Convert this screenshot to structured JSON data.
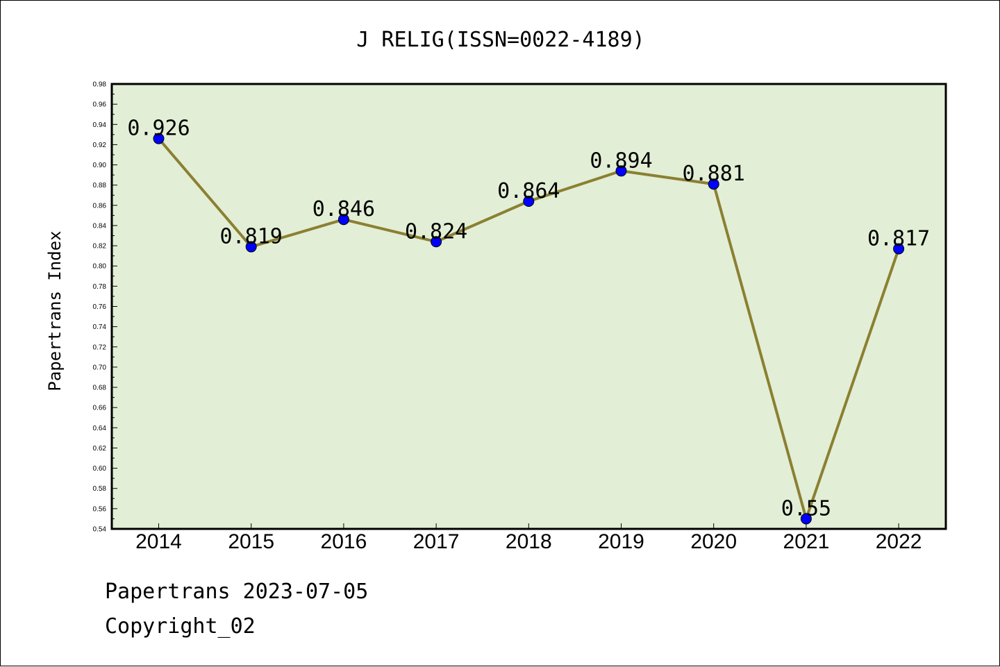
{
  "chart_data": {
    "type": "line",
    "title": "J RELIG(ISSN=0022-4189)",
    "xlabel": "",
    "ylabel": "Papertrans Index",
    "categories": [
      "2014",
      "2015",
      "2016",
      "2017",
      "2018",
      "2019",
      "2020",
      "2021",
      "2022"
    ],
    "series": [
      {
        "values": [
          0.926,
          0.819,
          0.846,
          0.824,
          0.864,
          0.894,
          0.881,
          0.55,
          0.817
        ],
        "labels": [
          "0.926",
          "0.819",
          "0.846",
          "0.824",
          "0.864",
          "0.894",
          "0.881",
          "0.55",
          "0.817"
        ]
      }
    ],
    "ylim": [
      0.54,
      0.98
    ],
    "ytick_step": 0.02,
    "grid": false,
    "legend": "none",
    "colors": {
      "plot_background": "#e2efd6",
      "line": "#8b8032",
      "marker": "#0000ff"
    }
  },
  "footer": {
    "line1": "Papertrans 2023-07-05",
    "line2": "Copyright_02"
  }
}
